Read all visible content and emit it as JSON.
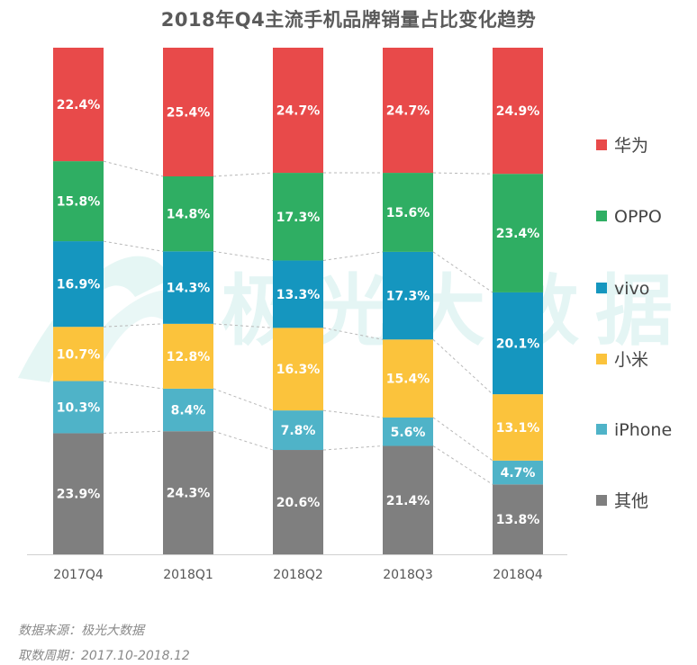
{
  "watermark": "极光大数据",
  "footer": {
    "source": "数据来源：极光大数据",
    "period": "取数周期：2017.10-2018.12"
  },
  "colors": {
    "华为": "#e84a4a",
    "OPPO": "#2fae63",
    "vivo": "#1596bf",
    "小米": "#fbc33c",
    "iPhone": "#4fb3c8",
    "其他": "#7f7f7f"
  },
  "chart_data": {
    "type": "bar",
    "stacked": true,
    "title": "2018年Q4主流手机品牌销量占比变化趋势",
    "xlabel": "",
    "ylabel": "",
    "ylim": [
      0,
      100
    ],
    "unit": "%",
    "grid": false,
    "legend_position": "right",
    "categories": [
      "2017Q4",
      "2018Q1",
      "2018Q2",
      "2018Q3",
      "2018Q4"
    ],
    "series": [
      {
        "name": "其他",
        "values": [
          23.9,
          24.3,
          20.6,
          21.4,
          13.8
        ]
      },
      {
        "name": "iPhone",
        "values": [
          10.3,
          8.4,
          7.8,
          5.6,
          4.7
        ]
      },
      {
        "name": "小米",
        "values": [
          10.7,
          12.8,
          16.3,
          15.4,
          13.1
        ]
      },
      {
        "name": "vivo",
        "values": [
          16.9,
          14.3,
          13.3,
          17.3,
          20.1
        ]
      },
      {
        "name": "OPPO",
        "values": [
          15.8,
          14.8,
          17.3,
          15.6,
          23.4
        ]
      },
      {
        "name": "华为",
        "values": [
          22.4,
          25.4,
          24.7,
          24.7,
          24.9
        ]
      }
    ],
    "legend_order": [
      "华为",
      "OPPO",
      "vivo",
      "小米",
      "iPhone",
      "其他"
    ]
  }
}
